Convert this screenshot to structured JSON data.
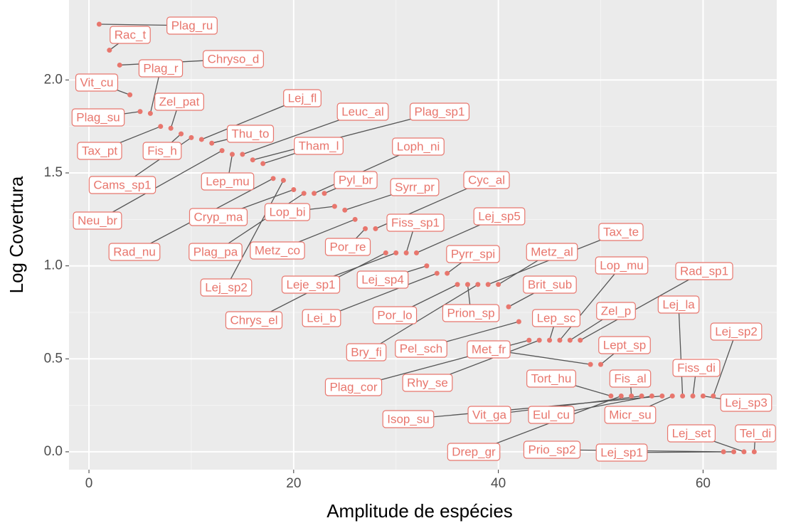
{
  "chart_data": {
    "type": "scatter",
    "xlabel": "Amplitude de espécies",
    "ylabel": "Log Covertura",
    "xlim": [
      -1.95,
      67.2
    ],
    "ylim": [
      -0.096,
      2.43
    ],
    "xticks": [
      0,
      20,
      40,
      60
    ],
    "yticks": [
      {
        "value": 0,
        "label": "0.0"
      },
      {
        "value": 0.5,
        "label": "0.5"
      },
      {
        "value": 1,
        "label": "1.0"
      },
      {
        "value": 1.5,
        "label": "1.5"
      },
      {
        "value": 2,
        "label": "2.0"
      }
    ],
    "grid": true,
    "color": "#e8766d",
    "labels": [
      "Plag_ru",
      "Rac_t",
      "Chryso_d",
      "Vit_cu",
      "Plag_su",
      "Plag_r",
      "Tax_pt",
      "Zel_pat",
      "Fis_h",
      "Cams_sp1",
      "Lej_fl",
      "Thu_to",
      "Neu_br",
      "Lep_mu",
      "Leuc_al",
      "Plag_sp1",
      "Tham_l",
      "Rad_nu",
      "Lej_sp2",
      "Cryp_ma",
      "Plag_pa",
      "Loph_ni",
      "Pyl_br",
      "Lop_bi",
      "Syrr_pr",
      "Metz_co",
      "Por_re",
      "Cyc_al",
      "Chrys_el",
      "Leje_sp1",
      "Fiss_sp1",
      "Lej_sp5",
      "Lej_sp4",
      "Lei_b",
      "Pyrr_spi",
      "Por_lo",
      "Prion_sp",
      "Bry_fi",
      "Tax_te",
      "Metz_al",
      "Brit_sub",
      "Pel_sch",
      "Plag_cor",
      "Rhy_se",
      "Lep_sc",
      "Lop_mu",
      "Zel_p",
      "Rad_sp1",
      "Met_fr",
      "Lept_sp",
      "Tort_hu",
      "Drep_gr",
      "Fis_al",
      "Vit_ga",
      "Eul_cu",
      "Isop_su",
      "Micr_su",
      "Lej_la",
      "Fiss_di",
      "Lej_sp3",
      "Lej_sp2",
      "Prio_sp2",
      "Lej_sp1",
      "Lej_set",
      "Tel_di"
    ],
    "x": [
      1,
      2,
      3,
      4,
      5,
      6,
      7,
      8,
      9,
      10,
      11,
      12,
      13,
      14,
      15,
      16,
      17,
      18,
      19,
      20,
      21,
      22,
      23,
      24,
      25,
      26,
      27,
      28,
      29,
      30,
      31,
      32,
      33,
      34,
      35,
      36,
      37,
      38,
      39,
      40,
      41,
      42,
      43,
      44,
      45,
      46,
      47,
      48,
      49,
      50,
      51,
      52,
      53,
      54,
      55,
      56,
      57,
      58,
      59,
      60,
      61,
      62,
      63,
      64,
      65
    ],
    "values": [
      2.3,
      2.16,
      2.08,
      1.92,
      1.83,
      1.82,
      1.75,
      1.74,
      1.71,
      1.69,
      1.68,
      1.66,
      1.62,
      1.6,
      1.6,
      1.57,
      1.55,
      1.47,
      1.46,
      1.41,
      1.39,
      1.39,
      1.39,
      1.32,
      1.3,
      1.25,
      1.2,
      1.2,
      1.07,
      1.07,
      1.07,
      1.07,
      1.0,
      0.96,
      0.96,
      0.9,
      0.9,
      0.9,
      0.9,
      0.9,
      0.78,
      0.7,
      0.6,
      0.6,
      0.6,
      0.6,
      0.6,
      0.6,
      0.47,
      0.47,
      0.3,
      0.3,
      0.3,
      0.3,
      0.3,
      0.3,
      0.3,
      0.3,
      0.3,
      0.3,
      0.3,
      0,
      0,
      0,
      0
    ]
  }
}
